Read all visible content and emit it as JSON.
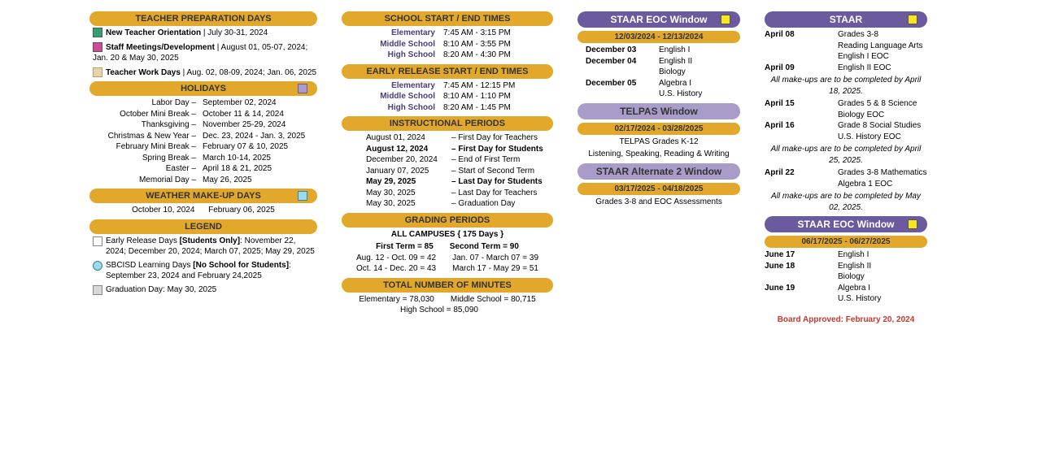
{
  "col1": {
    "teacher_prep_header": "TEACHER PREPARATION DAYS",
    "prep_items": [
      {
        "swatch": "green",
        "name": "New Teacher Orientation",
        "date": "July 30-31, 2024"
      },
      {
        "swatch": "magenta",
        "name": "Staff Meetings/Development",
        "date": "August 01, 05-07, 2024; Jan. 20 & May 30, 2025"
      },
      {
        "swatch": "tan",
        "name": "Teacher Work Days",
        "date": "Aug. 02, 08-09, 2024; Jan. 06, 2025"
      }
    ],
    "holidays_header": "HOLIDAYS",
    "holidays": [
      {
        "name": "Labor Day",
        "date": "September 02, 2024"
      },
      {
        "name": "October Mini Break",
        "date": "October 11 & 14, 2024"
      },
      {
        "name": "Thanksgiving",
        "date": "November 25-29, 2024"
      },
      {
        "name": "Christmas & New Year",
        "date": "Dec. 23, 2024 - Jan. 3, 2025"
      },
      {
        "name": "February Mini Break",
        "date": "February 07 & 10, 2025"
      },
      {
        "name": "Spring Break",
        "date": "March 10-14, 2025"
      },
      {
        "name": "Easter",
        "date": "April 18 & 21, 2025"
      },
      {
        "name": "Memorial Day",
        "date": "May 26, 2025"
      }
    ],
    "weather_header": "WEATHER MAKE-UP DAYS",
    "weather_dates": "October 10, 2024      February 06, 2025",
    "legend_header": "LEGEND",
    "legend_items": [
      {
        "swatch": "white",
        "shape": "sq",
        "text": "Early Release Days <b>[Students Only]</b>: November 22, 2024; December 20, 2024; March 07, 2025; May 29, 2025"
      },
      {
        "swatch": "lightblue",
        "shape": "circle",
        "text": "SBCISD Learning Days <b>[No School for Students]</b>: September 23, 2024 and February 24,2025"
      },
      {
        "swatch": "gray",
        "shape": "sq",
        "text": "Graduation Day: May 30, 2025"
      }
    ]
  },
  "col2": {
    "start_end_header": "SCHOOL START / END TIMES",
    "schedules": [
      {
        "level": "Elementary",
        "time": "7:45 AM - 3:15 PM"
      },
      {
        "level": "Middle School",
        "time": "8:10 AM - 3:55 PM"
      },
      {
        "level": "High School",
        "time": "8:20 AM - 4:30 PM"
      }
    ],
    "early_header": "EARLY RELEASE START / END TIMES",
    "early_schedules": [
      {
        "level": "Elementary",
        "time": "7:45 AM - 12:15 PM"
      },
      {
        "level": "Middle School",
        "time": "8:10 AM - 1:10 PM"
      },
      {
        "level": "High School",
        "time": "8:20 AM - 1:45 PM"
      }
    ],
    "inst_header": "INSTRUCTIONAL PERIODS",
    "inst_periods": [
      {
        "date": "August 01, 2024",
        "event": "First Day for Teachers",
        "bold": false
      },
      {
        "date": "August 12, 2024",
        "event": "First Day for Students",
        "bold": true
      },
      {
        "date": "December 20, 2024",
        "event": "End of First Term",
        "bold": false
      },
      {
        "date": "January 07, 2025",
        "event": "Start of Second Term",
        "bold": false
      },
      {
        "date": "May 29, 2025",
        "event": "Last Day for Students",
        "bold": true
      },
      {
        "date": "May 30, 2025",
        "event": "Last Day for Teachers",
        "bold": false
      },
      {
        "date": "May 30, 2025",
        "event": "Graduation Day",
        "bold": false
      }
    ],
    "grading_header": "GRADING PERIODS",
    "grading_title": "ALL CAMPUSES  { 175 Days }",
    "grading_rows": [
      {
        "l": "First Term = 85",
        "r": "Second Term = 90",
        "bold": true
      },
      {
        "l": "Aug. 12 - Oct. 09 = 42",
        "r": "Jan. 07 - March 07 = 39",
        "bold": false
      },
      {
        "l": "Oct. 14 - Dec. 20 = 43",
        "r": "March 17 - May 29 = 51",
        "bold": false
      }
    ],
    "minutes_header": "TOTAL NUMBER OF MINUTES",
    "minutes_rows": [
      {
        "l": "Elementary =  78,030",
        "r": "Middle School =  80,715"
      },
      {
        "l": "High School =  85,090",
        "r": ""
      }
    ]
  },
  "col3": {
    "eoc_header": "STAAR EOC Window",
    "eoc_date": "12/03/2024 - 12/13/2024",
    "eoc_items": [
      {
        "date": "December 03",
        "subj": "English I"
      },
      {
        "date": "December 04",
        "subj": "English II"
      },
      {
        "date": "",
        "subj": "Biology"
      },
      {
        "date": "December 05",
        "subj": "Algebra I"
      },
      {
        "date": "",
        "subj": "U.S. History"
      }
    ],
    "telpas_header": "TELPAS Window",
    "telpas_date": "02/17/2024 - 03/28/2025",
    "telpas_line1": "TELPAS Grades K-12",
    "telpas_line2": "Listening, Speaking, Reading & Writing",
    "alt2_header": "STAAR Alternate 2 Window",
    "alt2_date": "03/17/2025 - 04/18/2025",
    "alt2_text": "Grades 3-8 and EOC Assessments"
  },
  "col4": {
    "staar_header": "STAAR",
    "staar_items": [
      {
        "date": "April 08",
        "subj": "Grades 3-8"
      },
      {
        "date": "",
        "subj": "Reading Language Arts"
      },
      {
        "date": "",
        "subj": "English I EOC"
      },
      {
        "date": "April 09",
        "subj": "English II EOC"
      }
    ],
    "makeup1": "All make-ups are to be completed by April 18, 2025.",
    "staar_items2": [
      {
        "date": "April 15",
        "subj": "Grades 5 & 8 Science"
      },
      {
        "date": "",
        "subj": "Biology EOC"
      },
      {
        "date": "April 16",
        "subj": "Grade 8 Social Studies"
      },
      {
        "date": "",
        "subj": "U.S. History EOC"
      }
    ],
    "makeup2": "All make-ups are to be completed by April 25, 2025.",
    "staar_items3": [
      {
        "date": "April 22",
        "subj": "Grades 3-8 Mathematics"
      },
      {
        "date": "",
        "subj": "Algebra 1 EOC"
      }
    ],
    "makeup3": "All make-ups are to be completed by May 02, 2025.",
    "eoc2_header": "STAAR EOC Window",
    "eoc2_date": "06/17/2025 - 06/27/2025",
    "eoc2_items": [
      {
        "date": "June 17",
        "subj": "English I"
      },
      {
        "date": "June 18",
        "subj": "English II"
      },
      {
        "date": "",
        "subj": "Biology"
      },
      {
        "date": "June 19",
        "subj": "Algebra I"
      },
      {
        "date": "",
        "subj": "U.S. History"
      }
    ],
    "approved": "Board Approved:  February 20, 2024"
  }
}
